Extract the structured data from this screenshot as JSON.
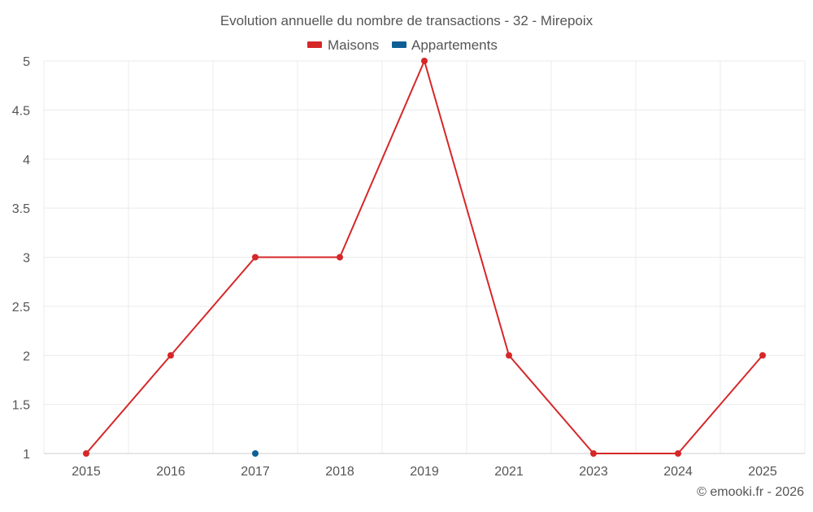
{
  "chart_data": {
    "type": "line",
    "title": "Evolution annuelle du nombre de transactions - 32 - Mirepoix",
    "categories": [
      "2015",
      "2016",
      "2017",
      "2018",
      "2019",
      "2021",
      "2023",
      "2024",
      "2025"
    ],
    "series": [
      {
        "name": "Maisons",
        "color": "#d62728",
        "values": [
          1,
          2,
          3,
          3,
          5,
          2,
          1,
          1,
          2
        ]
      },
      {
        "name": "Appartements",
        "color": "#0e5f96",
        "values": [
          null,
          null,
          1,
          null,
          null,
          null,
          null,
          null,
          null
        ]
      }
    ],
    "yticks": [
      "1",
      "1.5",
      "2",
      "2.5",
      "3",
      "3.5",
      "4",
      "4.5",
      "5"
    ],
    "ylim": [
      1,
      5
    ],
    "xlabel": "",
    "ylabel": "",
    "grid": true,
    "legend": "top-center"
  },
  "credit": "© emooki.fr - 2026"
}
